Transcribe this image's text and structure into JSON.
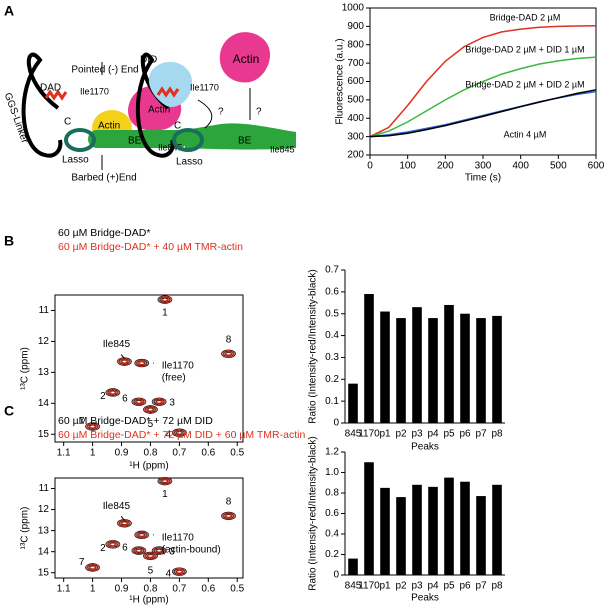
{
  "panel_labels": [
    "A",
    "B",
    "C"
  ],
  "diagram": {
    "left": [
      "Pointed (-) End",
      "DAD",
      "Ile1170",
      "Actin",
      "Actin",
      "C",
      "N",
      "BE",
      "Ile845",
      "GGS-Linker",
      "Lasso",
      "Barbed (+)End"
    ],
    "right": [
      "DID",
      "Ile1170",
      "Actin",
      "?",
      "?",
      "C",
      "BE",
      "Ile845",
      "Lasso"
    ]
  },
  "chart_data": [
    {
      "type": "line",
      "xlabel": "Time (s)",
      "ylabel": "Fluorescence (a.u.)",
      "x": [
        0,
        50,
        100,
        150,
        200,
        250,
        300,
        350,
        400,
        450,
        500,
        550,
        600
      ],
      "xlim": [
        0,
        600
      ],
      "xticks": [
        0,
        100,
        200,
        300,
        400,
        500,
        600
      ],
      "ylim": [
        200,
        1000
      ],
      "yticks": [
        200,
        300,
        400,
        500,
        600,
        700,
        800,
        900,
        1000
      ],
      "series": [
        {
          "name": "Bridge-DAD 2 µM",
          "color": "#e0301e",
          "values": [
            300,
            350,
            470,
            600,
            710,
            790,
            840,
            870,
            885,
            895,
            900,
            902,
            903
          ]
        },
        {
          "name": "Bridge-DAD 2 µM + DID 1 µM",
          "color": "#3cb93c",
          "values": [
            300,
            330,
            380,
            440,
            500,
            555,
            600,
            640,
            670,
            695,
            712,
            725,
            733
          ]
        },
        {
          "name": "Bridge-DAD 2 µM + DID 2 µM",
          "color": "#2f5fd0",
          "values": [
            300,
            310,
            325,
            345,
            365,
            390,
            415,
            440,
            465,
            490,
            510,
            530,
            545
          ]
        },
        {
          "name": "Actin 4 µM",
          "color": "#000000",
          "values": [
            300,
            305,
            318,
            338,
            360,
            385,
            410,
            437,
            463,
            488,
            512,
            535,
            555
          ]
        }
      ]
    },
    {
      "type": "scatter",
      "xlabel": "¹H (ppm)",
      "ylabel": "¹³C (ppm)",
      "xlim": [
        1.13,
        0.48
      ],
      "xticks": [
        1.1,
        1,
        0.9,
        0.8,
        0.7,
        0.6,
        0.5
      ],
      "ylim": [
        10.5,
        15.25
      ],
      "yticks": [
        11,
        12,
        13,
        14,
        15
      ],
      "labels": [
        "1",
        "2",
        "3",
        "4",
        "5",
        "6",
        "7",
        "8",
        "Ile845",
        "Ile1170"
      ],
      "annotations": [
        "(free)"
      ],
      "series": [
        {
          "name": "60 µM Bridge-DAD*",
          "color": "#000000",
          "x": [
            0.75,
            0.93,
            0.77,
            0.7,
            0.8,
            0.84,
            1.0,
            0.53,
            0.89,
            0.83
          ],
          "y": [
            10.65,
            13.65,
            13.95,
            14.95,
            14.2,
            13.95,
            14.75,
            12.4,
            12.65,
            12.7
          ]
        },
        {
          "name": "60 µM Bridge-DAD* + 40 µM TMR-actin",
          "color": "#e0301e",
          "x": [
            0.75,
            0.93,
            0.77,
            0.7,
            0.8,
            0.84,
            1.0,
            0.53,
            0.89,
            0.83
          ],
          "y": [
            10.65,
            13.65,
            13.95,
            14.95,
            14.2,
            13.95,
            14.75,
            12.4,
            12.65,
            12.7
          ]
        }
      ]
    },
    {
      "type": "bar",
      "xlabel": "Peaks",
      "ylabel": "Ratio (Intensity-red/Intensity-black)",
      "color": "#000000",
      "categories": [
        "845",
        "1170",
        "p1",
        "p2",
        "p3",
        "p4",
        "p5",
        "p6",
        "p7",
        "p8"
      ],
      "values": [
        0.18,
        0.59,
        0.51,
        0.48,
        0.53,
        0.48,
        0.54,
        0.5,
        0.48,
        0.49
      ],
      "ylim": [
        0,
        0.7
      ],
      "yticks": [
        0,
        0.1,
        0.2,
        0.3,
        0.4,
        0.5,
        0.6,
        0.7
      ]
    },
    {
      "type": "scatter",
      "xlabel": "¹H (ppm)",
      "ylabel": "¹³C (ppm)",
      "xlim": [
        1.13,
        0.48
      ],
      "xticks": [
        1.1,
        1,
        0.9,
        0.8,
        0.7,
        0.6,
        0.5
      ],
      "ylim": [
        10.5,
        15.25
      ],
      "yticks": [
        11,
        12,
        13,
        14,
        15
      ],
      "labels": [
        "1",
        "2",
        "3",
        "4",
        "5",
        "6",
        "7",
        "8",
        "Ile845",
        "Ile1170"
      ],
      "annotations": [
        "(actin-bound)"
      ],
      "series": [
        {
          "name": "60 µM Bridge-DAD* + 72 µM DID",
          "color": "#000000",
          "x": [
            0.75,
            0.93,
            0.77,
            0.7,
            0.8,
            0.84,
            1.0,
            0.53,
            0.89,
            0.83
          ],
          "y": [
            10.65,
            13.65,
            13.95,
            14.95,
            14.2,
            13.95,
            14.75,
            12.3,
            12.65,
            13.2
          ]
        },
        {
          "name": "60 µM Bridge-DAD* + 72 µM DID + 60 µM TMR-actin",
          "color": "#e0301e",
          "x": [
            0.75,
            0.93,
            0.77,
            0.7,
            0.8,
            0.84,
            1.0,
            0.53,
            0.89,
            0.83
          ],
          "y": [
            10.65,
            13.65,
            13.95,
            14.95,
            14.2,
            13.95,
            14.75,
            12.3,
            12.65,
            13.2
          ]
        }
      ]
    },
    {
      "type": "bar",
      "xlabel": "Peaks",
      "ylabel": "Ratio (Intensity-red/Intensity-black)",
      "color": "#000000",
      "categories": [
        "845",
        "1170",
        "p1",
        "p2",
        "p3",
        "p4",
        "p5",
        "p6",
        "p7",
        "p8"
      ],
      "values": [
        0.16,
        1.1,
        0.85,
        0.76,
        0.88,
        0.86,
        0.95,
        0.91,
        0.77,
        0.88
      ],
      "ylim": [
        0,
        1.2
      ],
      "yticks": [
        0,
        0.2,
        0.4,
        0.6,
        0.8,
        {
          "value": 1,
          "label": "1.0"
        },
        1.2
      ]
    }
  ]
}
